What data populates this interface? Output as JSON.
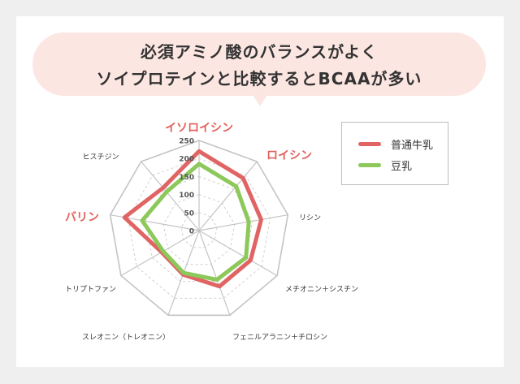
{
  "title": {
    "line1": "必須アミノ酸のバランスがよく",
    "line2": "ソイプロテインと比較するとBCAAが多い"
  },
  "colors": {
    "milk": "#e06464",
    "soy": "#8cc85a",
    "highlight_label": "#e0605a",
    "bubble": "#fce6e2"
  },
  "legend": {
    "milk_label": "普通牛乳",
    "soy_label": "豆乳"
  },
  "chart_data": {
    "type": "radar",
    "axes": [
      "イソロイシン",
      "ロイシン",
      "リシン",
      "メチオニン＋シスチン",
      "フェニルアラニン＋チロシン",
      "スレオニン（トレオニン）",
      "トリプトファン",
      "バリン",
      "ヒスチジン"
    ],
    "highlighted_axes": [
      "イソロイシン",
      "ロイシン",
      "バリン"
    ],
    "rmax": 250,
    "ticks": [
      0,
      50,
      100,
      150,
      200,
      250
    ],
    "tick_labels": [
      "0",
      "50",
      "100",
      "150",
      "200",
      "250"
    ],
    "series": [
      {
        "name": "普通牛乳",
        "values": [
          220,
          190,
          175,
          165,
          165,
          130,
          120,
          210,
          155
        ]
      },
      {
        "name": "豆乳",
        "values": [
          185,
          160,
          140,
          150,
          145,
          125,
          115,
          160,
          140
        ]
      }
    ]
  }
}
